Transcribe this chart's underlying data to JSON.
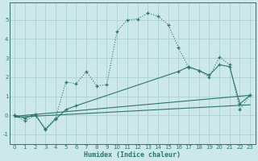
{
  "xlabel": "Humidex (Indice chaleur)",
  "bg_color": "#cce8e8",
  "line_color": "#2d7570",
  "grid_color": "#b0d5d5",
  "xlim": [
    -0.5,
    23.5
  ],
  "ylim": [
    -1.5,
    5.9
  ],
  "yticks": [
    -1,
    0,
    1,
    2,
    3,
    4,
    5
  ],
  "xticks": [
    0,
    1,
    2,
    3,
    4,
    5,
    6,
    7,
    8,
    9,
    10,
    11,
    12,
    13,
    14,
    15,
    16,
    17,
    18,
    19,
    20,
    21,
    22,
    23
  ],
  "line1_x": [
    0,
    1,
    2,
    3,
    4,
    5,
    6,
    7,
    8,
    9,
    10,
    11,
    12,
    13,
    14,
    15,
    16,
    17,
    18,
    19,
    20,
    21,
    22,
    23
  ],
  "line1_y": [
    0.0,
    -0.3,
    0.0,
    -0.7,
    -0.15,
    1.75,
    1.65,
    2.3,
    1.55,
    1.6,
    4.4,
    5.0,
    5.05,
    5.35,
    5.2,
    4.75,
    3.55,
    2.5,
    2.35,
    2.0,
    3.05,
    2.65,
    0.3,
    1.05
  ],
  "line2_x": [
    0,
    1,
    2,
    3,
    4,
    5,
    6,
    16,
    17,
    18,
    19,
    20,
    21,
    22,
    23
  ],
  "line2_y": [
    0.0,
    -0.15,
    0.05,
    -0.75,
    -0.2,
    0.3,
    0.5,
    2.3,
    2.55,
    2.35,
    2.1,
    2.65,
    2.55,
    0.6,
    1.05
  ],
  "line3_x": [
    0,
    23
  ],
  "line3_y": [
    -0.05,
    1.05
  ],
  "line4_x": [
    0,
    23
  ],
  "line4_y": [
    -0.1,
    0.55
  ]
}
